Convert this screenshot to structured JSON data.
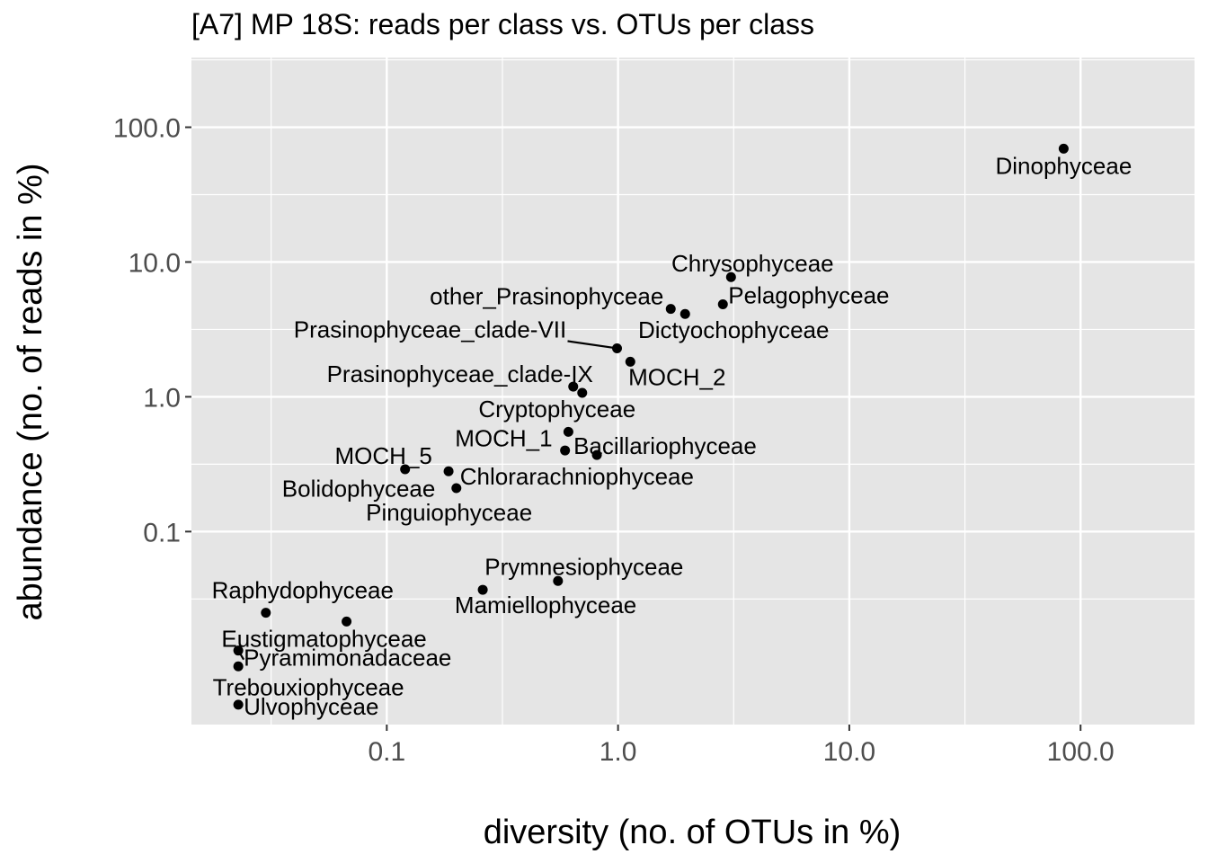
{
  "chart_data": {
    "type": "scatter",
    "title": "[A7] MP 18S: reads per class vs. OTUs per class",
    "xlabel": "diversity (no. of OTUs in %)",
    "ylabel": "abundance (no. of reads in %)",
    "x_scale": "log10",
    "y_scale": "log10",
    "xlim": [
      0.0143,
      311
    ],
    "ylim": [
      0.0037,
      329
    ],
    "x_ticks": [
      0.1,
      1.0,
      10.0,
      100.0
    ],
    "x_tick_labels": [
      "0.1",
      "1.0",
      "10.0",
      "100.0"
    ],
    "y_ticks": [
      0.1,
      1.0,
      10.0,
      100.0
    ],
    "y_tick_labels": [
      "0.1",
      "1.0",
      "10.0",
      "100.0"
    ],
    "grid": true,
    "legend": "none",
    "point_color": "#000000",
    "panel_color": "#e5e5e5",
    "grid_color": "#ffffff",
    "points": [
      {
        "label": "Dinophyceae",
        "x": 84.5,
        "y": 69.4
      },
      {
        "label": "Chrysophyceae",
        "x": 3.08,
        "y": 7.73
      },
      {
        "label": "Pelagophyceae",
        "x": 2.84,
        "y": 4.86
      },
      {
        "label": "other_Prasinophyceae",
        "x": 1.69,
        "y": 4.49
      },
      {
        "label": "Dictyochophyceae",
        "x": 1.95,
        "y": 4.12
      },
      {
        "label": "Prasinophyceae_clade-VII",
        "x": 0.99,
        "y": 2.29
      },
      {
        "label": "MOCH_2",
        "x": 1.13,
        "y": 1.82
      },
      {
        "label": "Prasinophyceae_clade-IX",
        "x": 0.64,
        "y": 1.19
      },
      {
        "label": "Cryptophyceae",
        "x": 0.7,
        "y": 1.07
      },
      {
        "label": "MOCH_1",
        "x": 0.61,
        "y": 0.55
      },
      {
        "label": "Bacillariophyceae",
        "x": 0.81,
        "y": 0.37
      },
      {
        "label": "MOCH_5",
        "x": 0.12,
        "y": 0.29
      },
      {
        "label": "Bolidophyceae",
        "x": 0.185,
        "y": 0.28
      },
      {
        "label": "Chlorarachniophyceae",
        "x": 0.2,
        "y": 0.21
      },
      {
        "label": "Pinguiophyceae",
        "x": 0.59,
        "y": 0.4
      },
      {
        "label": "Prymnesiophyceae",
        "x": 0.55,
        "y": 0.043
      },
      {
        "label": "Mamiellophyceae",
        "x": 0.26,
        "y": 0.037
      },
      {
        "label": "Raphydophyceae",
        "x": 0.03,
        "y": 0.025
      },
      {
        "label": "Eustigmatophyceae",
        "x": 0.067,
        "y": 0.0215
      },
      {
        "label": "Pyramimonadaceae",
        "x": 0.0228,
        "y": 0.0131
      },
      {
        "label": "Trebouxiophyceae",
        "x": 0.0228,
        "y": 0.01
      },
      {
        "label": "Ulvophyceae",
        "x": 0.0228,
        "y": 0.0052
      }
    ]
  }
}
